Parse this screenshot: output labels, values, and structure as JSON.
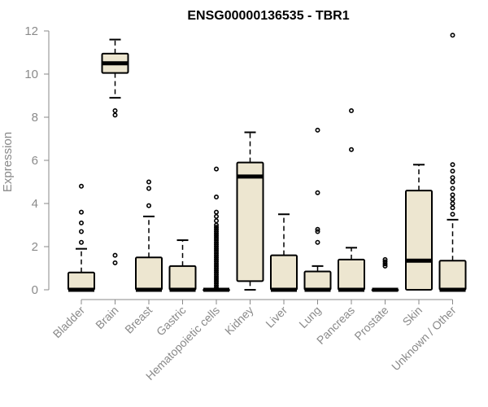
{
  "chart_data": {
    "type": "boxplot",
    "title": "ENSG00000136535 - TBR1",
    "xlabel": "",
    "ylabel": "Expression",
    "ylim": [
      0,
      12
    ],
    "yticks": [
      0,
      2,
      4,
      6,
      8,
      10,
      12
    ],
    "box_fill": "#ede6d0",
    "categories": [
      "Bladder",
      "Brain",
      "Breast",
      "Gastric",
      "Hematopoietic cells",
      "Kidney",
      "Liver",
      "Lung",
      "Pancreas",
      "Prostate",
      "Skin",
      "Unknown / Other"
    ],
    "boxes": [
      {
        "q1": 0.0,
        "median": 0.0,
        "q3": 0.8,
        "whisker_low": 0.0,
        "whisker_high": 1.9,
        "outliers": [
          2.2,
          2.7,
          3.1,
          3.6,
          4.8
        ]
      },
      {
        "q1": 10.05,
        "median": 10.5,
        "q3": 10.95,
        "whisker_low": 8.9,
        "whisker_high": 11.6,
        "outliers": [
          1.25,
          1.6,
          8.1,
          8.3
        ]
      },
      {
        "q1": 0.0,
        "median": 0.0,
        "q3": 1.5,
        "whisker_low": 0.0,
        "whisker_high": 3.4,
        "outliers": [
          3.9,
          4.7,
          5.0
        ]
      },
      {
        "q1": 0.0,
        "median": 0.0,
        "q3": 1.1,
        "whisker_low": 0.0,
        "whisker_high": 2.3,
        "outliers": []
      },
      {
        "q1": 0.0,
        "median": 0.0,
        "q3": 0.0,
        "whisker_low": 0.0,
        "whisker_high": 0.0,
        "outliers": [
          0.1,
          0.2,
          0.3,
          0.4,
          0.5,
          0.6,
          0.7,
          0.8,
          0.9,
          1.0,
          1.1,
          1.2,
          1.3,
          1.4,
          1.5,
          1.6,
          1.7,
          1.8,
          1.9,
          2.0,
          2.1,
          2.2,
          2.3,
          2.4,
          2.5,
          2.6,
          2.7,
          2.8,
          2.9,
          3.0,
          3.2,
          3.4,
          3.6,
          4.3,
          5.6
        ]
      },
      {
        "q1": 0.4,
        "median": 5.25,
        "q3": 5.9,
        "whisker_low": 0.0,
        "whisker_high": 7.3,
        "outliers": []
      },
      {
        "q1": 0.0,
        "median": 0.0,
        "q3": 1.6,
        "whisker_low": 0.0,
        "whisker_high": 3.5,
        "outliers": []
      },
      {
        "q1": 0.0,
        "median": 0.0,
        "q3": 0.85,
        "whisker_low": 0.0,
        "whisker_high": 1.1,
        "outliers": [
          2.2,
          2.7,
          2.8,
          4.5,
          7.4
        ]
      },
      {
        "q1": 0.0,
        "median": 0.0,
        "q3": 1.4,
        "whisker_low": 0.0,
        "whisker_high": 1.95,
        "outliers": [
          6.5,
          8.3
        ]
      },
      {
        "q1": 0.0,
        "median": 0.0,
        "q3": 0.0,
        "whisker_low": 0.0,
        "whisker_high": 0.0,
        "outliers": [
          1.1,
          1.2,
          1.3,
          1.4
        ]
      },
      {
        "q1": 0.0,
        "median": 1.35,
        "q3": 4.6,
        "whisker_low": 0.0,
        "whisker_high": 5.8,
        "outliers": []
      },
      {
        "q1": 0.0,
        "median": 0.0,
        "q3": 1.35,
        "whisker_low": 0.0,
        "whisker_high": 3.25,
        "outliers": [
          3.5,
          3.8,
          4.0,
          4.2,
          4.4,
          4.7,
          5.0,
          5.2,
          5.5,
          5.8,
          11.8
        ]
      }
    ]
  }
}
